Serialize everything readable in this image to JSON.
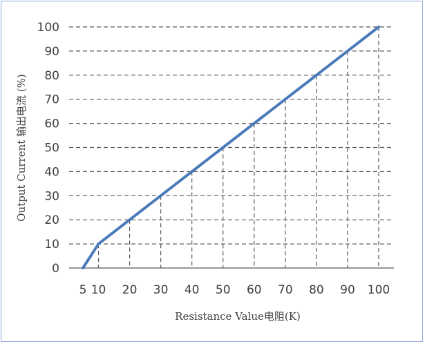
{
  "chart_data": {
    "type": "line",
    "xlabel": "Resistance Value电阻(K)",
    "ylabel": "Output Current 输出电流 (%)",
    "x_ticks": [
      5,
      10,
      20,
      30,
      40,
      50,
      60,
      70,
      80,
      90,
      100
    ],
    "y_ticks": [
      0,
      10,
      20,
      30,
      40,
      50,
      60,
      70,
      80,
      90,
      100
    ],
    "xlim": [
      5,
      100
    ],
    "ylim": [
      0,
      100
    ],
    "grid": "dashed",
    "series": [
      {
        "x": [
          5,
          10,
          20,
          30,
          40,
          50,
          60,
          70,
          80,
          90,
          100
        ],
        "y": [
          0,
          10,
          20,
          30,
          40,
          50,
          60,
          70,
          80,
          90,
          100
        ]
      }
    ],
    "colors": {
      "line": "#4a7ab8",
      "grid": "#595959",
      "text": "#404040",
      "frame": "#8faadc"
    }
  }
}
